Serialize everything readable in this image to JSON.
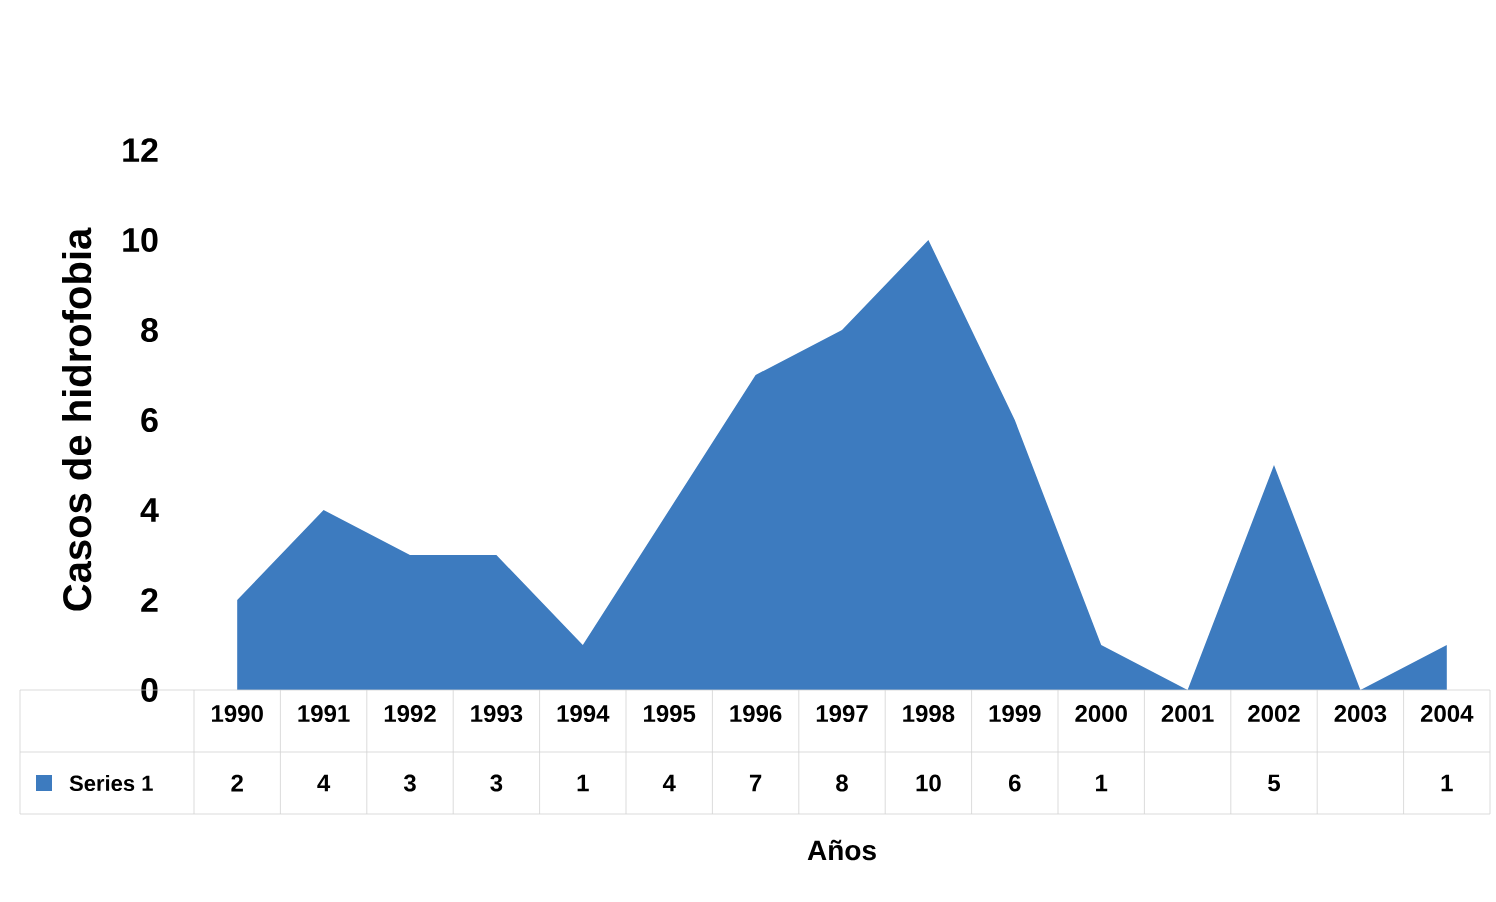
{
  "chart_data": {
    "type": "area",
    "xlabel": "Años",
    "ylabel": "Casos de hidrofobia",
    "categories": [
      "1990",
      "1991",
      "1992",
      "1993",
      "1994",
      "1995",
      "1996",
      "1997",
      "1998",
      "1999",
      "2000",
      "2001",
      "2002",
      "2003",
      "2004"
    ],
    "series": [
      {
        "name": "Series 1",
        "color": "#3d7bbf",
        "values": [
          2,
          4,
          3,
          3,
          1,
          4,
          7,
          8,
          10,
          6,
          1,
          0,
          5,
          0,
          1
        ],
        "value_labels": [
          "2",
          "4",
          "3",
          "3",
          "1",
          "4",
          "7",
          "8",
          "10",
          "6",
          "1",
          null,
          "5",
          null,
          "1"
        ]
      }
    ],
    "ylim": [
      0,
      12
    ],
    "yticks": [
      0,
      2,
      4,
      6,
      8,
      10,
      12
    ],
    "legend": "bottom",
    "grid": false
  }
}
